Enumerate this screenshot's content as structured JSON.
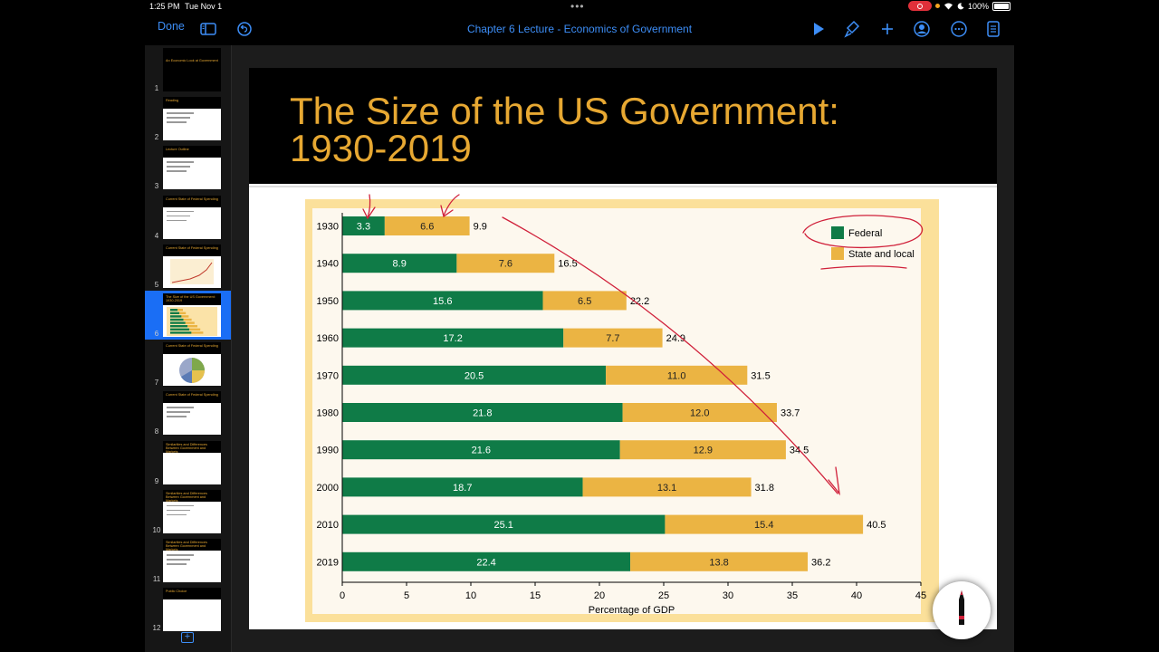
{
  "status": {
    "time": "1:25 PM",
    "date": "Tue Nov 1",
    "battery": "100%"
  },
  "toolbar": {
    "done_label": "Done",
    "doc_title": "Chapter 6 Lecture - Economics of Government"
  },
  "thumbnails": [
    {
      "num": "1",
      "title": "An Economic Look at Government",
      "kind": "title"
    },
    {
      "num": "2",
      "title": "Reading",
      "kind": "bullets"
    },
    {
      "num": "3",
      "title": "Lecture Outline",
      "kind": "bullets"
    },
    {
      "num": "4",
      "title": "Current State of Federal Spending",
      "kind": "bullets"
    },
    {
      "num": "5",
      "title": "Current State of Federal Spending",
      "kind": "chart"
    },
    {
      "num": "6",
      "title": "The Size of the US Government: 1930-2019",
      "kind": "bars"
    },
    {
      "num": "7",
      "title": "Current State of Federal Spending",
      "kind": "pie"
    },
    {
      "num": "8",
      "title": "Current State of Federal Spending",
      "kind": "bullets"
    },
    {
      "num": "9",
      "title": "Similarities and Differences Between Government and Markets",
      "kind": "blank"
    },
    {
      "num": "10",
      "title": "Similarities and Differences Between Government and Markets",
      "kind": "bullets"
    },
    {
      "num": "11",
      "title": "Similarities and Differences Between Government and Markets",
      "kind": "bullets"
    },
    {
      "num": "12",
      "title": "Public Choice",
      "kind": "blank"
    }
  ],
  "slide": {
    "title_line1": "The Size of the US Government:",
    "title_line2": "1930-2019"
  },
  "chart_data": {
    "type": "bar",
    "orientation": "horizontal-stacked",
    "categories": [
      "1930",
      "1940",
      "1950",
      "1960",
      "1970",
      "1980",
      "1990",
      "2000",
      "2010",
      "2019"
    ],
    "series": [
      {
        "name": "Federal",
        "color": "#0f7b47",
        "values": [
          3.3,
          8.9,
          15.6,
          17.2,
          20.5,
          21.8,
          21.6,
          18.7,
          25.1,
          22.4
        ]
      },
      {
        "name": "State and local",
        "color": "#ebb443",
        "values": [
          6.6,
          7.6,
          6.5,
          7.7,
          11.0,
          12.0,
          12.9,
          13.1,
          15.4,
          13.8
        ]
      }
    ],
    "totals": [
      "9.9",
      "16.5",
      "22.2",
      "24.9",
      "31.5",
      "33.7",
      "34.5",
      "31.8",
      "40.5",
      "36.2"
    ],
    "federal_labels": [
      "3.3",
      "8.9",
      "15.6",
      "17.2",
      "20.5",
      "21.8",
      "21.6",
      "18.7",
      "25.1",
      "22.4"
    ],
    "state_labels": [
      "6.6",
      "7.6",
      "6.5",
      "7.7",
      "11.0",
      "12.0",
      "12.9",
      "13.1",
      "15.4",
      "13.8"
    ],
    "xlabel": "Percentage of GDP",
    "xlim": [
      0,
      45
    ],
    "xticks": [
      "0",
      "5",
      "10",
      "15",
      "20",
      "25",
      "30",
      "35",
      "40",
      "45"
    ],
    "legend_placement": "top-right",
    "legend": [
      "Federal",
      "State and local"
    ],
    "annotation_color": "#d0203a"
  }
}
